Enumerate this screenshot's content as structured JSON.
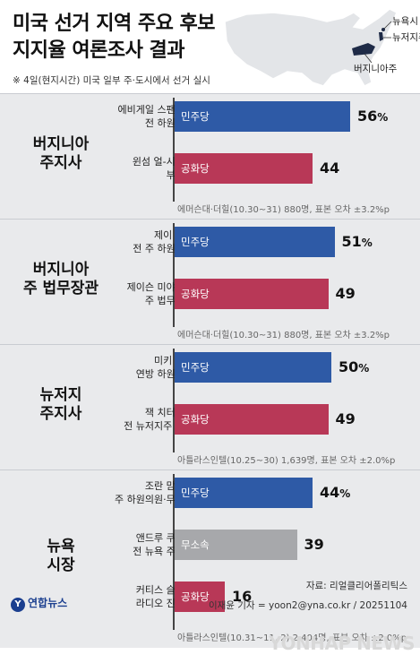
{
  "title_lines": [
    "미국 선거 지역 주요 후보",
    "지지율 여론조사 결과"
  ],
  "map_labels": {
    "ny": "뉴욕시",
    "nj": "뉴저지주",
    "va": "버지니아주"
  },
  "note": "※ 4일(현지시간) 미국 일부 주·도시에서 선거 실시",
  "source": "자료: 리얼클리어폴리틱스",
  "credit": "이재윤 기자 = yoon2@yna.co.kr / 20251104",
  "logo": "연합뉴스",
  "watermark": "YONHAP NEWS",
  "colors": {
    "민주당": "#2e5aa6",
    "공화당": "#b83857",
    "무소속": "#a7a8ab",
    "panel": "#e9eaec"
  },
  "chart_data": {
    "type": "bar",
    "orientation": "horizontal",
    "unit": "%",
    "xlim": [
      0,
      100
    ],
    "races": [
      {
        "name": [
          "버지니아",
          "주지사"
        ],
        "poll": "에머슨대·더힐(10.30~31) 880명, 표본 오차 ±3.2%p",
        "candidates": [
          {
            "name": [
              "에비게일 스팬버거",
              "전 하원의원"
            ],
            "party": "민주당",
            "value": 56
          },
          {
            "name": [
              "윈섬 얼-시어스",
              "부지사"
            ],
            "party": "공화당",
            "value": 44
          }
        ]
      },
      {
        "name": [
          "버지니아",
          "주 법무장관"
        ],
        "poll": "에머슨대·더힐(10.30~31) 880명, 표본 오차 ±3.2%p",
        "candidates": [
          {
            "name": [
              "제이 존스",
              "전 주 하원의원"
            ],
            "party": "민주당",
            "value": 51
          },
          {
            "name": [
              "제이슨 미야레스",
              "주 법무장관"
            ],
            "party": "공화당",
            "value": 49
          }
        ]
      },
      {
        "name": [
          "뉴저지",
          "주지사"
        ],
        "poll": "아틀라스인텔(10.25~30) 1,639명, 표본 오차 ±2.0%p",
        "candidates": [
          {
            "name": [
              "미키 셰릴",
              "연방 하원의원"
            ],
            "party": "민주당",
            "value": 50
          },
          {
            "name": [
              "잭 치터렐리",
              "전 뉴저지주 의원"
            ],
            "party": "공화당",
            "value": 49
          }
        ]
      },
      {
        "name": [
          "뉴욕",
          "시장"
        ],
        "poll": "아틀라스인텔(10.31~11. 2) 2,404명, 표본 오차 ±2.0%p",
        "candidates": [
          {
            "name": [
              "조란 맘다니",
              "주 하원의원·무슬림"
            ],
            "party": "민주당",
            "value": 44
          },
          {
            "name": [
              "앤드루 쿠오모",
              "전 뉴욕 주지사"
            ],
            "party": "무소속",
            "value": 39
          },
          {
            "name": [
              "커티스 슬리워",
              "라디오 진행자"
            ],
            "party": "공화당",
            "value": 16
          }
        ]
      }
    ]
  }
}
